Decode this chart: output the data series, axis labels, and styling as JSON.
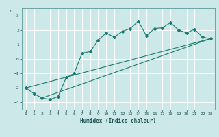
{
  "xlabel": "Humidex (Indice chaleur)",
  "bg_color": "#cce8e8",
  "line_color": "#1a7a6e",
  "grid_color": "#ffffff",
  "xlim": [
    -0.5,
    23.5
  ],
  "ylim": [
    -3.5,
    3.5
  ],
  "yticks": [
    -3,
    -2,
    -1,
    0,
    1,
    2,
    3
  ],
  "xticks": [
    0,
    1,
    2,
    3,
    4,
    5,
    6,
    7,
    8,
    9,
    10,
    11,
    12,
    13,
    14,
    15,
    16,
    17,
    18,
    19,
    20,
    21,
    22,
    23
  ],
  "series1_x": [
    0,
    1,
    2,
    3,
    4,
    5,
    6,
    7,
    8,
    9,
    10,
    11,
    12,
    13,
    14,
    15,
    16,
    17,
    18,
    19,
    20,
    21,
    22,
    23
  ],
  "series1_y": [
    -2.0,
    -2.4,
    -2.7,
    -2.8,
    -2.6,
    -1.3,
    -1.0,
    0.4,
    0.5,
    1.3,
    1.8,
    1.5,
    1.9,
    2.1,
    2.6,
    1.6,
    2.1,
    2.15,
    2.5,
    2.0,
    1.8,
    2.05,
    1.5,
    1.4
  ],
  "series2_x": [
    0,
    23
  ],
  "series2_y": [
    -2.0,
    1.4
  ],
  "series3_x": [
    2,
    23
  ],
  "series3_y": [
    -2.7,
    1.4
  ],
  "xlabel_fontsize": 5.5,
  "tick_fontsize": 4.5
}
